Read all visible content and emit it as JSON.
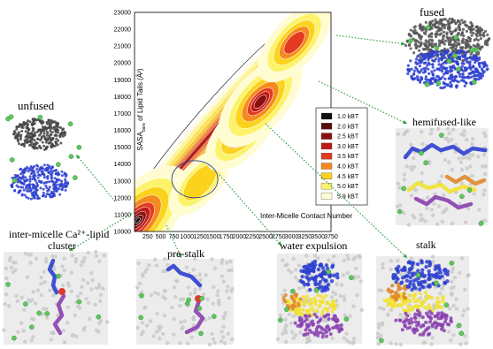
{
  "chart_data": {
    "type": "heatmap",
    "title": "",
    "xlabel": "Inter-Micelle Contact Number",
    "ylabel_main": "SASA",
    "ylabel_sub": "bare",
    "ylabel_rest": " of Lipid Tails (Å²)",
    "xlim": [
      0,
      3750
    ],
    "ylim": [
      10000,
      23000
    ],
    "x_ticks": [
      250,
      500,
      750,
      1000,
      1250,
      1500,
      1750,
      2000,
      2250,
      2500,
      2750,
      3000,
      3250,
      3500,
      3750
    ],
    "y_ticks": [
      10000,
      11000,
      12000,
      13000,
      14000,
      15000,
      16000,
      17000,
      18000,
      19000,
      20000,
      21000,
      22000,
      23000
    ],
    "legend": {
      "position": "right",
      "entries": [
        {
          "label": "1.0 kBT",
          "level": 1.0,
          "color": "#101010"
        },
        {
          "label": "2.0 kBT",
          "level": 2.0,
          "color": "#5a0d0d"
        },
        {
          "label": "2.5 kBT",
          "level": 2.5,
          "color": "#8b1010"
        },
        {
          "label": "3.0 kBT",
          "level": 3.0,
          "color": "#c01818"
        },
        {
          "label": "3.5 kBT",
          "level": 3.5,
          "color": "#e23b1f"
        },
        {
          "label": "4.0 kBT",
          "level": 4.0,
          "color": "#f58a1f"
        },
        {
          "label": "4.5 kBT",
          "level": 4.5,
          "color": "#fbd21c"
        },
        {
          "label": "5.0 kBT",
          "level": 5.0,
          "color": "#fdf36a"
        },
        {
          "label": "5.9 kBT",
          "level": 5.9,
          "color": "#fffcd2"
        }
      ]
    },
    "basins": [
      {
        "x": 60,
        "y": 10650,
        "depth": 1.0
      },
      {
        "x": 1250,
        "y": 12900,
        "depth": 4.5
      },
      {
        "x": 2050,
        "y": 15900,
        "depth": 3.5
      },
      {
        "x": 2400,
        "y": 17700,
        "depth": 2.5
      },
      {
        "x": 3050,
        "y": 21200,
        "depth": 3.5
      }
    ],
    "highlight_circle": {
      "x": 1150,
      "y": 13100
    }
  },
  "labels": {
    "fused": "fused",
    "unfused": "unfused",
    "hemifused": "hemifused-like",
    "cluster_line1": "inter-micelle  Ca²⁺-lipid",
    "cluster_line2": "cluster",
    "prestalk": "pre-stalk",
    "water": "water expulsion",
    "stalk": "stalk"
  },
  "colors": {
    "arrow": "#2f9e46",
    "head_groups": "#2d3fd0",
    "tails_purple": "#8a3fb0",
    "tails_yellow": "#f2e230",
    "tails_orange": "#e08a2a",
    "ions": "#5bc85b",
    "solvent": "#c8c8c8"
  }
}
